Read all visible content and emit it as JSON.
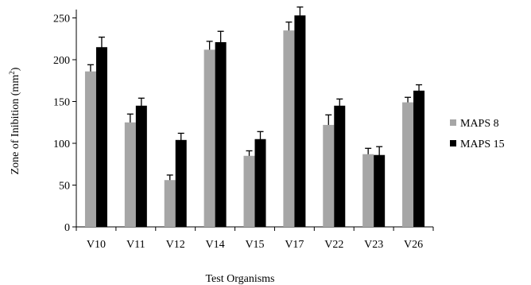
{
  "chart_data": {
    "type": "bar",
    "xlabel": "Test Organisms",
    "ylabel_parts": [
      "Zone of Inibition (mm",
      "2",
      ")"
    ],
    "categories": [
      "V10",
      "V11",
      "V12",
      "V14",
      "V15",
      "V17",
      "V22",
      "V23",
      "V26"
    ],
    "series": [
      {
        "name": "MAPS 8",
        "color": "#a6a6a6",
        "values": [
          186,
          125,
          56,
          212,
          85,
          235,
          122,
          87,
          149
        ],
        "errors": [
          8,
          10,
          6,
          10,
          6,
          10,
          12,
          7,
          6
        ]
      },
      {
        "name": "MAPS 15",
        "color": "#000000",
        "values": [
          215,
          145,
          104,
          221,
          105,
          253,
          145,
          86,
          163
        ],
        "errors": [
          12,
          9,
          8,
          13,
          9,
          10,
          8,
          10,
          7
        ]
      }
    ],
    "yticks": [
      0,
      50,
      100,
      150,
      200,
      250
    ],
    "ylim": [
      0,
      260
    ],
    "legend_position": "right",
    "grid": false
  }
}
